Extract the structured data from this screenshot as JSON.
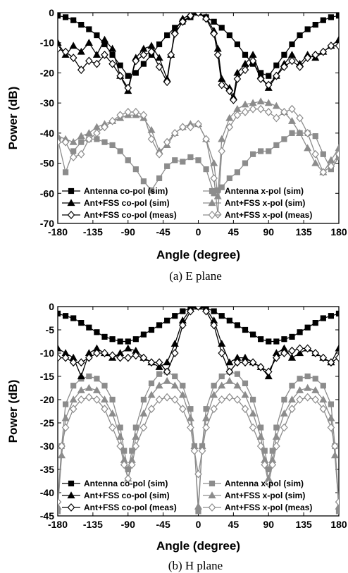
{
  "chart_data": [
    {
      "type": "line",
      "caption": "(a)  E plane",
      "xlabel": "Angle (degree)",
      "ylabel": "Power (dB)",
      "xlim": [
        -180,
        180
      ],
      "ylim": [
        -70,
        0
      ],
      "xticks": [
        -180,
        -135,
        -90,
        -45,
        0,
        45,
        90,
        135,
        180
      ],
      "yticks": [
        0,
        -10,
        -20,
        -30,
        -40,
        -50,
        -60,
        -70
      ],
      "legend_position": "bottom",
      "series": [
        {
          "name": "Antenna co-pol (sim)",
          "marker": "square",
          "color": "#000000",
          "x": [
            -180,
            -170,
            -160,
            -150,
            -140,
            -130,
            -120,
            -110,
            -100,
            -90,
            -80,
            -70,
            -60,
            -50,
            -40,
            -30,
            -20,
            -10,
            0,
            10,
            20,
            30,
            40,
            50,
            60,
            70,
            80,
            90,
            100,
            110,
            120,
            130,
            140,
            150,
            160,
            170,
            180
          ],
          "y": [
            -1,
            -1.5,
            -2.5,
            -4,
            -5.5,
            -7.5,
            -10.5,
            -14,
            -17.5,
            -21,
            -20,
            -17,
            -14,
            -10.5,
            -7.5,
            -5,
            -3,
            -1.5,
            0,
            -1.5,
            -3,
            -5,
            -7.5,
            -10.5,
            -14,
            -17,
            -20,
            -21,
            -17.5,
            -14,
            -10.5,
            -7.5,
            -5.5,
            -4,
            -2.5,
            -1.5,
            -1
          ]
        },
        {
          "name": "Ant+FSS co-pol (sim)",
          "marker": "triangle",
          "color": "#000000",
          "x": [
            -180,
            -170,
            -160,
            -150,
            -140,
            -130,
            -120,
            -110,
            -100,
            -90,
            -80,
            -70,
            -60,
            -50,
            -40,
            -35,
            -30,
            -20,
            -10,
            0,
            10,
            20,
            25,
            30,
            40,
            45,
            50,
            60,
            70,
            80,
            90,
            100,
            110,
            120,
            130,
            140,
            150,
            160,
            170,
            180
          ],
          "y": [
            -10,
            -14,
            -11,
            -13,
            -10,
            -14,
            -9,
            -12,
            -21,
            -26,
            -15,
            -12,
            -11,
            -15,
            -22,
            -14,
            -6,
            -2,
            -0.5,
            0,
            -1.5,
            -6,
            -12,
            -22,
            -25,
            -28,
            -20,
            -17,
            -14,
            -21,
            -25,
            -21,
            -17,
            -14,
            -17,
            -14,
            -15,
            -13,
            -11,
            -9
          ]
        },
        {
          "name": "Ant+FSS co-pol (meas)",
          "marker": "diamond",
          "color": "#000000",
          "x": [
            -180,
            -170,
            -160,
            -150,
            -140,
            -130,
            -120,
            -110,
            -100,
            -90,
            -80,
            -70,
            -60,
            -50,
            -40,
            -35,
            -30,
            -20,
            -10,
            0,
            10,
            20,
            25,
            30,
            40,
            45,
            50,
            60,
            70,
            80,
            90,
            100,
            110,
            120,
            130,
            140,
            150,
            160,
            170,
            180
          ],
          "y": [
            -12,
            -13,
            -15,
            -19,
            -16,
            -17,
            -14,
            -17,
            -21,
            -25,
            -16,
            -14,
            -13,
            -18,
            -23,
            -14,
            -7,
            -3,
            -1,
            0,
            -2,
            -7,
            -14,
            -24,
            -26,
            -29,
            -22,
            -19,
            -16,
            -22,
            -24,
            -21,
            -18,
            -16,
            -18,
            -15,
            -14,
            -13,
            -11,
            -11
          ]
        },
        {
          "name": "Antenna x-pol (sim)",
          "marker": "square",
          "color": "#8c8c8c",
          "x": [
            -180,
            -170,
            -160,
            -150,
            -140,
            -130,
            -120,
            -110,
            -100,
            -90,
            -80,
            -70,
            -60,
            -50,
            -40,
            -30,
            -20,
            -10,
            0,
            10,
            20,
            25,
            30,
            40,
            50,
            60,
            70,
            80,
            90,
            100,
            110,
            120,
            130,
            140,
            150,
            160,
            170,
            180
          ],
          "y": [
            -42,
            -53,
            -46,
            -43,
            -42,
            -42,
            -43,
            -44,
            -46,
            -49,
            -52,
            -56,
            -59,
            -55,
            -51,
            -49,
            -49.5,
            -48,
            -49,
            -52,
            -60,
            -59,
            -58,
            -55,
            -53,
            -50,
            -47,
            -46,
            -46,
            -44,
            -42,
            -40,
            -40,
            -40,
            -41,
            -47,
            -52,
            -48
          ]
        },
        {
          "name": "Ant+FSS x-pol (sim)",
          "marker": "triangle",
          "color": "#8c8c8c",
          "x": [
            -180,
            -170,
            -160,
            -150,
            -140,
            -130,
            -120,
            -110,
            -100,
            -90,
            -80,
            -70,
            -60,
            -50,
            -40,
            -30,
            -20,
            -10,
            0,
            10,
            20,
            25,
            30,
            40,
            50,
            60,
            70,
            80,
            90,
            100,
            110,
            120,
            130,
            140,
            150,
            160,
            170,
            180
          ],
          "y": [
            -41,
            -42,
            -43,
            -41,
            -40,
            -38,
            -37,
            -36,
            -35,
            -34,
            -34,
            -35,
            -39,
            -46,
            -44,
            -40,
            -38,
            -37,
            -37,
            -42,
            -50,
            -61,
            -42,
            -35,
            -32,
            -30.5,
            -30,
            -29.5,
            -30,
            -31,
            -33,
            -36,
            -40,
            -45,
            -50,
            -53,
            -49,
            -45
          ]
        },
        {
          "name": "Ant+FSS x-pol (meas)",
          "marker": "diamond",
          "color": "#8c8c8c",
          "x": [
            -180,
            -170,
            -160,
            -150,
            -140,
            -130,
            -120,
            -110,
            -100,
            -90,
            -80,
            -70,
            -60,
            -50,
            -40,
            -30,
            -20,
            -10,
            0,
            10,
            20,
            25,
            30,
            40,
            50,
            60,
            70,
            80,
            90,
            100,
            110,
            120,
            130,
            140,
            150,
            160,
            170,
            180
          ],
          "y": [
            -43,
            -43,
            -48,
            -47,
            -42,
            -40,
            -38,
            -36,
            -34,
            -33,
            -33,
            -34,
            -42,
            -47,
            -43,
            -40,
            -38,
            -38,
            -37,
            -42,
            -55,
            -67,
            -46,
            -38,
            -34,
            -33,
            -32,
            -32,
            -33,
            -35,
            -33,
            -32,
            -35,
            -40,
            -47,
            -53,
            -51,
            -47
          ]
        }
      ]
    },
    {
      "type": "line",
      "caption": "(b)  H plane",
      "xlabel": "Angle (degree)",
      "ylabel": "Power (dB)",
      "xlim": [
        -180,
        180
      ],
      "ylim": [
        -45,
        0
      ],
      "xticks": [
        -180,
        -135,
        -90,
        -45,
        0,
        45,
        90,
        135,
        180
      ],
      "yticks": [
        0,
        -5,
        -10,
        -15,
        -20,
        -25,
        -30,
        -35,
        -40,
        -45
      ],
      "legend_position": "bottom",
      "series": [
        {
          "name": "Antenna co-pol (sim)",
          "marker": "square",
          "color": "#000000",
          "x": [
            -180,
            -170,
            -160,
            -150,
            -140,
            -130,
            -120,
            -110,
            -100,
            -90,
            -80,
            -70,
            -60,
            -50,
            -40,
            -30,
            -20,
            -10,
            0,
            10,
            20,
            30,
            40,
            50,
            60,
            70,
            80,
            90,
            100,
            110,
            120,
            130,
            140,
            150,
            160,
            170,
            180
          ],
          "y": [
            -1.5,
            -2,
            -2.5,
            -3.5,
            -4.5,
            -5.5,
            -6.5,
            -7,
            -7.5,
            -7.5,
            -7,
            -6,
            -5,
            -4,
            -3,
            -2,
            -1,
            -0.3,
            0,
            -0.3,
            -1,
            -2,
            -3,
            -4,
            -5,
            -6,
            -7,
            -7.5,
            -7.5,
            -7,
            -6.5,
            -5.5,
            -4.5,
            -3.5,
            -2.5,
            -2,
            -1.5
          ]
        },
        {
          "name": "Ant+FSS co-pol (sim)",
          "marker": "triangle",
          "color": "#000000",
          "x": [
            -180,
            -170,
            -160,
            -150,
            -140,
            -130,
            -120,
            -110,
            -100,
            -90,
            -80,
            -70,
            -60,
            -50,
            -40,
            -30,
            -20,
            -10,
            0,
            10,
            20,
            30,
            40,
            50,
            60,
            70,
            80,
            90,
            100,
            110,
            120,
            130,
            140,
            150,
            160,
            170,
            180
          ],
          "y": [
            -9,
            -10,
            -11,
            -15,
            -10,
            -9,
            -10,
            -11,
            -10,
            -9,
            -9.5,
            -11,
            -12,
            -13,
            -12,
            -8,
            -3,
            -0.5,
            0,
            -0.5,
            -3,
            -8,
            -12,
            -11,
            -11,
            -12,
            -13,
            -15,
            -10,
            -9,
            -11,
            -10,
            -9,
            -10,
            -11,
            -12,
            -9
          ]
        },
        {
          "name": "Ant+FSS co-pol (meas)",
          "marker": "diamond",
          "color": "#000000",
          "x": [
            -180,
            -170,
            -160,
            -150,
            -140,
            -130,
            -120,
            -110,
            -100,
            -90,
            -80,
            -70,
            -60,
            -50,
            -40,
            -30,
            -20,
            -10,
            0,
            10,
            20,
            30,
            40,
            50,
            60,
            70,
            80,
            90,
            100,
            110,
            120,
            130,
            140,
            150,
            160,
            170,
            180
          ],
          "y": [
            -11,
            -11,
            -12,
            -12,
            -11,
            -10,
            -10,
            -10.5,
            -11,
            -11,
            -10.5,
            -11,
            -12,
            -12,
            -14,
            -10,
            -4,
            -1,
            0,
            -1,
            -4,
            -10,
            -14,
            -12,
            -12,
            -12,
            -13,
            -14,
            -11,
            -10,
            -9.5,
            -9,
            -9,
            -10,
            -11,
            -12,
            -11
          ]
        },
        {
          "name": "Antenna x-pol (sim)",
          "marker": "square",
          "color": "#8c8c8c",
          "x": [
            -180,
            -175,
            -170,
            -160,
            -150,
            -140,
            -130,
            -120,
            -110,
            -100,
            -95,
            -90,
            -85,
            -80,
            -70,
            -60,
            -50,
            -40,
            -30,
            -20,
            -10,
            -5,
            0,
            5,
            10,
            20,
            30,
            40,
            50,
            60,
            70,
            80,
            85,
            90,
            95,
            100,
            110,
            120,
            130,
            140,
            150,
            160,
            170,
            175,
            180
          ],
          "y": [
            -44,
            -30,
            -21,
            -17,
            -15.5,
            -15,
            -15.5,
            -17,
            -20,
            -26,
            -31,
            -35,
            -31,
            -26,
            -20,
            -16.5,
            -14.5,
            -14,
            -15,
            -17,
            -22,
            -30,
            -44,
            -30,
            -22,
            -17,
            -15,
            -14,
            -14.5,
            -16.5,
            -20,
            -26,
            -31,
            -35,
            -31,
            -26,
            -20,
            -17,
            -15.5,
            -15,
            -15.5,
            -17,
            -21,
            -30,
            -44
          ]
        },
        {
          "name": "Ant+FSS x-pol (sim)",
          "marker": "triangle",
          "color": "#8c8c8c",
          "x": [
            -180,
            -175,
            -170,
            -160,
            -150,
            -140,
            -130,
            -120,
            -110,
            -100,
            -95,
            -90,
            -85,
            -80,
            -70,
            -60,
            -50,
            -40,
            -30,
            -20,
            -10,
            -5,
            0,
            5,
            10,
            20,
            30,
            40,
            50,
            60,
            70,
            80,
            85,
            90,
            95,
            100,
            110,
            120,
            130,
            140,
            150,
            160,
            170,
            175,
            180
          ],
          "y": [
            -43,
            -32,
            -24,
            -20,
            -18,
            -17.5,
            -18,
            -20,
            -23,
            -28,
            -33,
            -37,
            -33,
            -28,
            -23,
            -19,
            -17,
            -16,
            -17,
            -19,
            -24,
            -30,
            -43,
            -30,
            -24,
            -19,
            -17,
            -16,
            -17,
            -19,
            -23,
            -28,
            -33,
            -37,
            -33,
            -28,
            -23,
            -20,
            -18,
            -17.5,
            -18,
            -20,
            -24,
            -32,
            -43
          ]
        },
        {
          "name": "Ant+FSS x-pol (meas)",
          "marker": "diamond",
          "color": "#8c8c8c",
          "x": [
            -180,
            -175,
            -170,
            -160,
            -150,
            -140,
            -130,
            -120,
            -110,
            -100,
            -95,
            -90,
            -85,
            -80,
            -70,
            -60,
            -50,
            -40,
            -30,
            -20,
            -10,
            -5,
            0,
            5,
            10,
            20,
            30,
            40,
            50,
            60,
            70,
            80,
            85,
            90,
            95,
            100,
            110,
            120,
            130,
            140,
            150,
            160,
            170,
            175,
            180
          ],
          "y": [
            -42,
            -30,
            -26,
            -22,
            -20,
            -19.5,
            -20,
            -22,
            -26,
            -30,
            -34,
            -37,
            -34,
            -30,
            -26,
            -22,
            -20,
            -19.5,
            -20,
            -22,
            -26,
            -31,
            -36,
            -31,
            -26,
            -22,
            -20,
            -19.5,
            -20,
            -22,
            -26,
            -30,
            -34,
            -38,
            -34,
            -30,
            -26,
            -22,
            -20,
            -19.5,
            -20,
            -22,
            -26,
            -30,
            -42
          ]
        }
      ]
    }
  ]
}
